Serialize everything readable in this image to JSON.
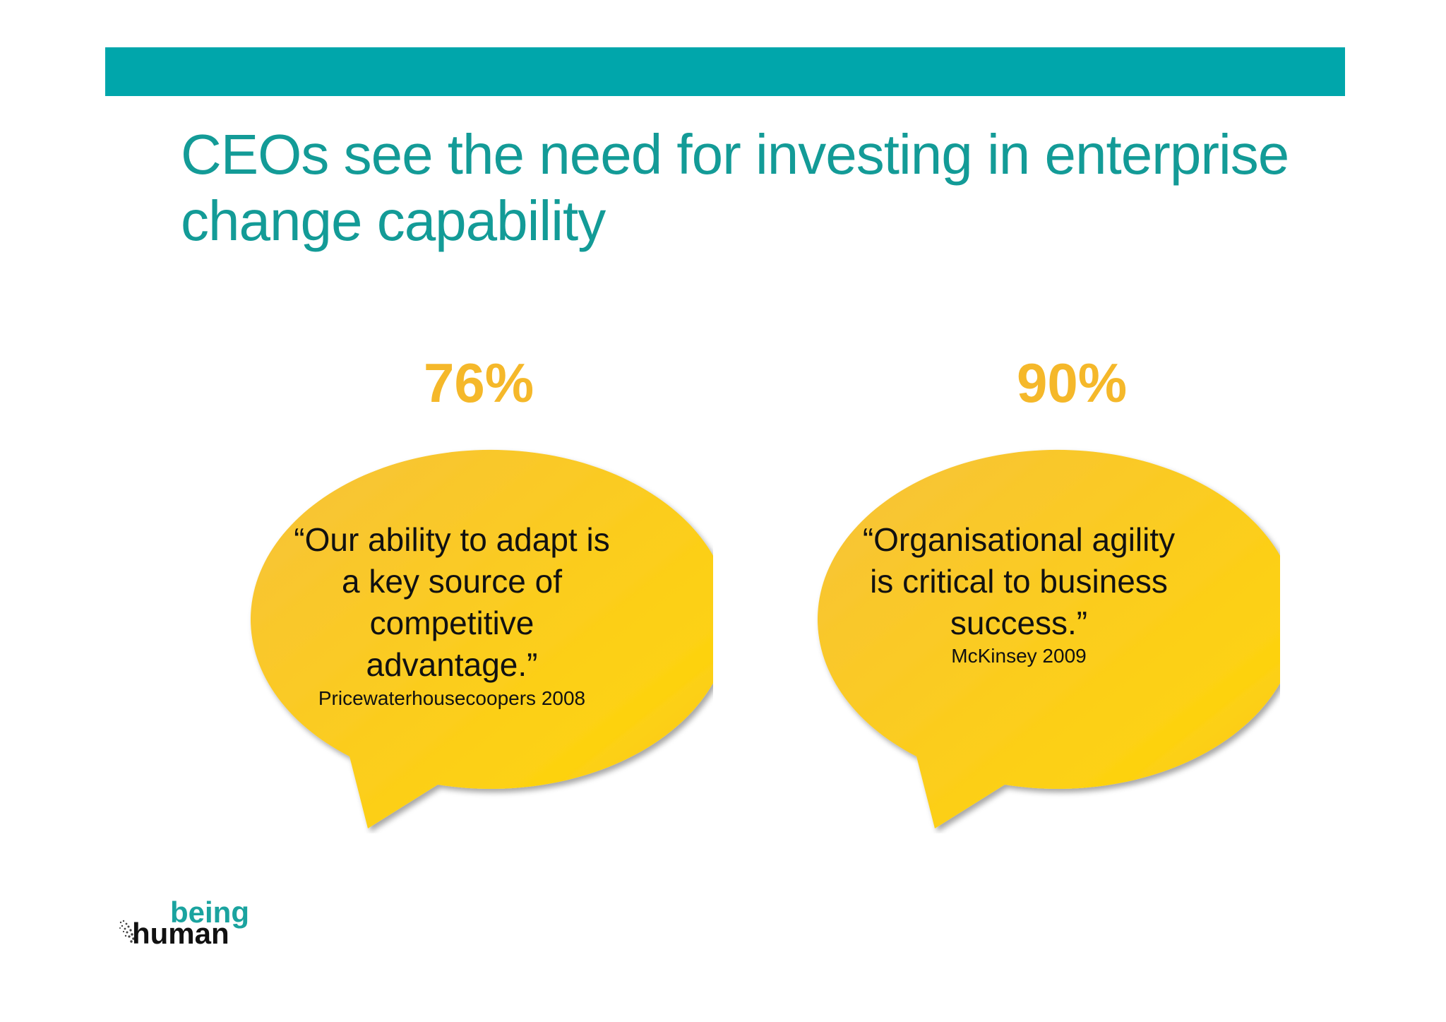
{
  "slide": {
    "title_lines": [
      "CEOs see the need for investing in enterprise",
      "change capability"
    ]
  },
  "bubbles": [
    {
      "stat": "76%",
      "quote_lines": [
        "“Our ability to adapt is",
        "a key source of",
        "competitive",
        "advantage.”"
      ],
      "source": "Pricewaterhousecoopers 2008"
    },
    {
      "stat": "90%",
      "quote_lines": [
        "“Organisational agility",
        "is critical to business",
        "success.”"
      ],
      "source": "McKinsey 2009"
    }
  ],
  "logo": {
    "word1": "being",
    "word2": "human"
  },
  "colors": {
    "teal": "#00a6ab",
    "title": "#139b97",
    "stat": "#f5b82a",
    "bubble": "#fccd25"
  }
}
